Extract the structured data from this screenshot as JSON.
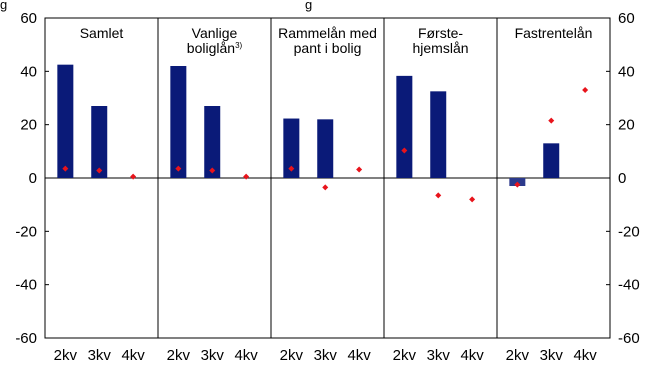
{
  "figure": {
    "title_fragment": "g",
    "title_fragment_right": "g"
  },
  "chart_data": {
    "type": "bar",
    "ylim": [
      -60,
      60
    ],
    "yticks": [
      60,
      40,
      20,
      0,
      -20,
      -40,
      -60
    ],
    "categories": [
      "2kv",
      "3kv",
      "4kv"
    ],
    "grid": false,
    "colors": {
      "bar": "#0a1a78",
      "bar_negative": "#2c3a8c",
      "marker": "#e8141c",
      "frame": "#000000"
    },
    "panels": [
      {
        "title_lines": [
          "Samlet"
        ],
        "bars": [
          42.5,
          27,
          null
        ],
        "points": [
          3.5,
          2.8,
          0.5
        ]
      },
      {
        "title_lines": [
          "Vanlige",
          "boliglån"
        ],
        "title_superscript": "3)",
        "bars": [
          42,
          27,
          null
        ],
        "points": [
          3.5,
          2.8,
          0.5
        ]
      },
      {
        "title_lines": [
          "Rammelån med",
          "pant i bolig"
        ],
        "bars": [
          22.3,
          22,
          null
        ],
        "points": [
          3.5,
          -3.5,
          3.2
        ]
      },
      {
        "title_lines": [
          "Første-",
          "hjemslån"
        ],
        "bars": [
          38.3,
          32.5,
          null
        ],
        "points": [
          10.3,
          -6.5,
          -8
        ]
      },
      {
        "title_lines": [
          "Fastrentelån"
        ],
        "bars": [
          -3,
          13,
          null
        ],
        "points": [
          -2.5,
          21.5,
          33
        ]
      }
    ]
  }
}
